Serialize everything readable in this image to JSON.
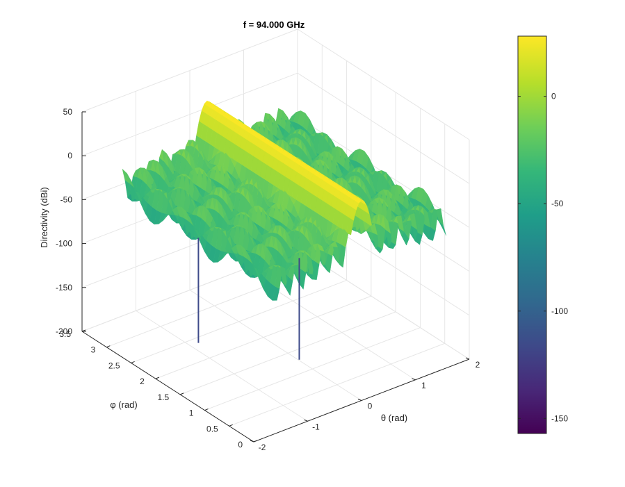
{
  "chart_data": {
    "type": "surface",
    "title": "f = 94.000 GHz",
    "xlabel": "θ (rad)",
    "ylabel": "φ (rad)",
    "zlabel": "Directivity (dBi)",
    "xlim": [
      -2,
      2
    ],
    "ylim": [
      0,
      3.5
    ],
    "zlim": [
      -200,
      50
    ],
    "x_ticks": [
      "-2",
      "-1",
      "0",
      "1",
      "2"
    ],
    "y_ticks": [
      "0",
      "0.5",
      "1",
      "1.5",
      "2",
      "2.5",
      "3",
      "3.5"
    ],
    "z_ticks": [
      "-200",
      "-150",
      "-100",
      "-50",
      "0",
      "50"
    ],
    "colorbar": {
      "colormap": "viridis",
      "range": [
        -157,
        28
      ],
      "ticks": [
        "-150",
        "-100",
        "-50",
        "0"
      ]
    },
    "main_beam": {
      "theta": 0,
      "peak_dBi": 28,
      "description": "ridge along phi at theta ≈ 0"
    },
    "theta_range_of_surface": [
      -1.57,
      1.57
    ],
    "deep_nulls": [
      {
        "theta": -1.57,
        "phi": 1.6,
        "value_dBi": -155
      },
      {
        "theta": -0.7,
        "phi": 0.5,
        "value_dBi": -155
      }
    ],
    "sidelobe_floor_dBi": [
      -40,
      0
    ],
    "colors": {
      "viridis": [
        "#440154",
        "#482878",
        "#3e4989",
        "#31688e",
        "#26828e",
        "#1f9e89",
        "#35b779",
        "#6ece58",
        "#b5de2b",
        "#fde725"
      ]
    }
  }
}
